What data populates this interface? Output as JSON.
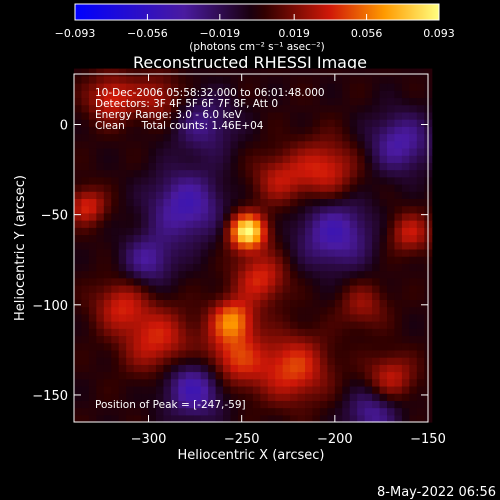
{
  "chart_data": {
    "type": "heatmap",
    "title": "Reconstructed RHESSI Image",
    "xlabel": "Heliocentric X (arcsec)",
    "ylabel": "Heliocentric Y (arcsec)",
    "xlim": [
      -340,
      -150
    ],
    "ylim": [
      -165,
      28
    ],
    "x_ticks": [
      -300,
      -250,
      -200,
      -150
    ],
    "y_ticks": [
      0,
      -50,
      -100,
      -150
    ],
    "colorbar": {
      "label": "(photons cm⁻² s⁻¹ asec⁻²)",
      "range": [
        -0.093,
        0.093
      ],
      "ticks": [
        -0.093,
        -0.056,
        -0.019,
        0.019,
        0.056,
        0.093
      ],
      "tick_labels": [
        "−0.093",
        "−0.056",
        "−0.019",
        "0.019",
        "0.056",
        "0.093"
      ]
    },
    "info_lines": [
      "10-Dec-2006 05:58:32.000 to 06:01:48.000",
      "Detectors: 3F 4F 5F 6F 7F 8F, Att 0",
      "Energy Range: 3.0 - 6.0 keV",
      "Clean     Total counts: 1.46E+04"
    ],
    "peak_label": "Position of Peak = [-247,-59]",
    "peak": {
      "x": -247,
      "y": -59,
      "value": 0.093
    },
    "sources": [
      {
        "x": -247,
        "y": -59,
        "amp": 0.093,
        "sigma": 7
      },
      {
        "x": -255,
        "y": -108,
        "amp": 0.055,
        "sigma": 8
      },
      {
        "x": -240,
        "y": -85,
        "amp": 0.04,
        "sigma": 10
      },
      {
        "x": -222,
        "y": -135,
        "amp": 0.045,
        "sigma": 13
      },
      {
        "x": -255,
        "y": -130,
        "amp": 0.045,
        "sigma": 12
      },
      {
        "x": -295,
        "y": -120,
        "amp": 0.04,
        "sigma": 13
      },
      {
        "x": -315,
        "y": -100,
        "amp": 0.035,
        "sigma": 10
      },
      {
        "x": -333,
        "y": -45,
        "amp": 0.04,
        "sigma": 7
      },
      {
        "x": -320,
        "y": 15,
        "amp": 0.04,
        "sigma": 9
      },
      {
        "x": -295,
        "y": 15,
        "amp": 0.03,
        "sigma": 9
      },
      {
        "x": -205,
        "y": -25,
        "amp": 0.04,
        "sigma": 12
      },
      {
        "x": -230,
        "y": -30,
        "amp": 0.03,
        "sigma": 10
      },
      {
        "x": -160,
        "y": -60,
        "amp": 0.035,
        "sigma": 8
      },
      {
        "x": -170,
        "y": -140,
        "amp": 0.035,
        "sigma": 9
      },
      {
        "x": -185,
        "y": -100,
        "amp": 0.025,
        "sigma": 9
      },
      {
        "x": -280,
        "y": -45,
        "amp": -0.045,
        "sigma": 14
      },
      {
        "x": -275,
        "y": -145,
        "amp": -0.05,
        "sigma": 12
      },
      {
        "x": -200,
        "y": -60,
        "amp": -0.045,
        "sigma": 14
      },
      {
        "x": -165,
        "y": -10,
        "amp": -0.04,
        "sigma": 12
      },
      {
        "x": -300,
        "y": -75,
        "amp": -0.035,
        "sigma": 10
      },
      {
        "x": -270,
        "y": 0,
        "amp": -0.03,
        "sigma": 12
      },
      {
        "x": -180,
        "y": -160,
        "amp": -0.035,
        "sigma": 10
      }
    ]
  },
  "footer": {
    "date_stamp": "8-May-2022 06:56"
  },
  "colors": {
    "background": "#000000",
    "text": "#ffffff"
  }
}
